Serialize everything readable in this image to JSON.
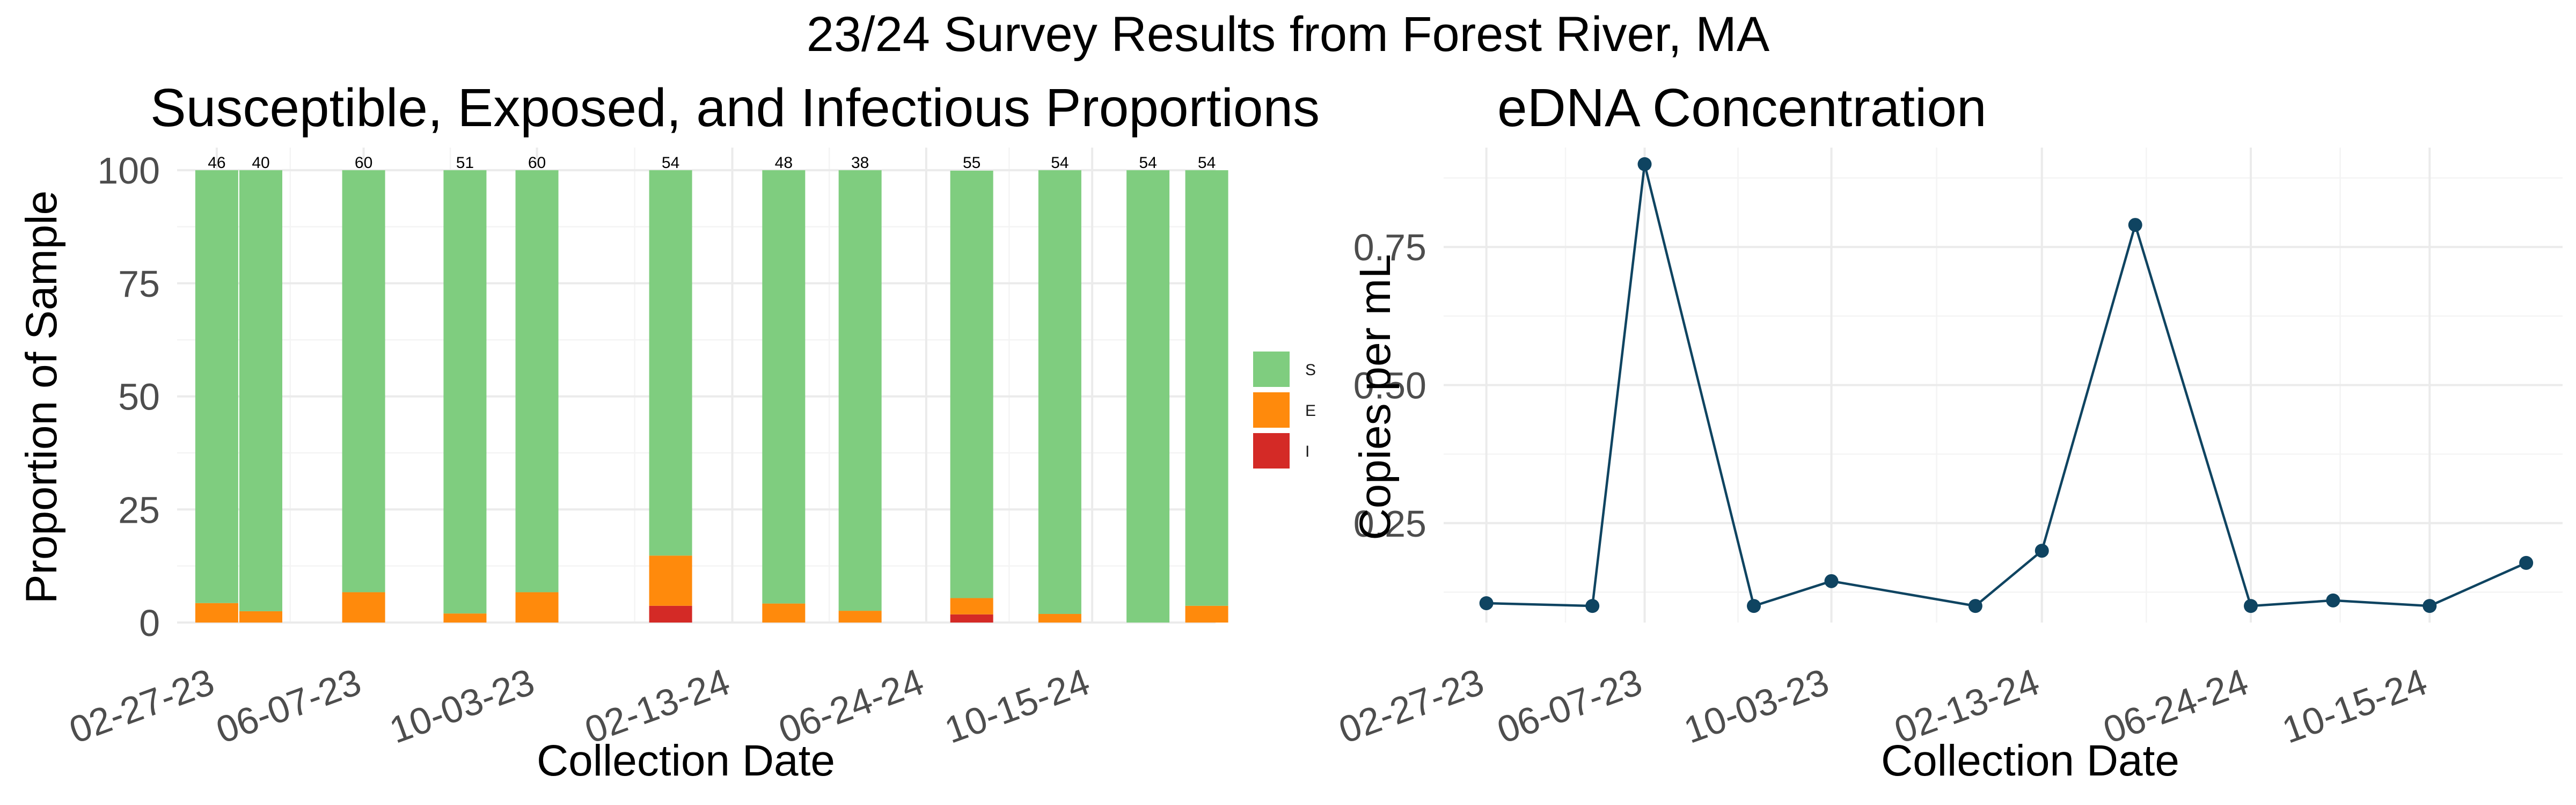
{
  "figure": {
    "title": "23/24 Survey Results from  Forest River, MA"
  },
  "chart_data": [
    {
      "type": "bar",
      "stacked": true,
      "title": "Susceptible, Exposed, and Infectious Proportions",
      "xlabel": "Collection Date",
      "ylabel": "Proportion of Sample",
      "ylim": [
        0,
        105
      ],
      "yticks": [
        0,
        25,
        50,
        75,
        100
      ],
      "x_tick_labels": [
        "02-27-23",
        "06-07-23",
        "10-03-23",
        "02-13-24",
        "06-24-24",
        "10-15-24"
      ],
      "x_tick_dates": [
        "2023-02-27",
        "2023-06-07",
        "2023-10-03",
        "2024-02-13",
        "2024-06-24",
        "2024-10-15"
      ],
      "x_range": [
        "2023-01-31",
        "2025-01-07"
      ],
      "grid": true,
      "legend_position": "right",
      "categories": [
        "2023-02-27",
        "2023-03-29",
        "2023-06-07",
        "2023-08-15",
        "2023-10-03",
        "2024-01-02",
        "2024-03-19",
        "2024-05-10",
        "2024-07-25",
        "2024-09-23",
        "2024-11-22",
        "2025-01-01"
      ],
      "sample_sizes": [
        "46",
        "40",
        "60",
        "51",
        "60",
        "54",
        "48",
        "38",
        "55",
        "54",
        "54",
        "54"
      ],
      "series": [
        {
          "name": "S",
          "color": "#7fcd7f",
          "values": [
            95.7,
            97.5,
            93.3,
            98.0,
            93.3,
            85.2,
            95.8,
            97.4,
            94.5,
            98.1,
            100.0,
            96.3
          ]
        },
        {
          "name": "E",
          "color": "#ff8a0c",
          "values": [
            4.3,
            2.5,
            6.7,
            2.0,
            6.7,
            11.1,
            4.2,
            2.6,
            3.6,
            1.9,
            0.0,
            3.7
          ]
        },
        {
          "name": "I",
          "color": "#d42a26",
          "values": [
            0.0,
            0.0,
            0.0,
            0.0,
            0.0,
            3.7,
            0.0,
            0.0,
            1.8,
            0.0,
            0.0,
            0.0
          ]
        }
      ]
    },
    {
      "type": "line",
      "title": "eDNA Concentration",
      "xlabel": "Collection Date",
      "ylabel": "Copies per mL",
      "ylim": [
        0.07,
        0.93
      ],
      "yticks": [
        0.25,
        0.5,
        0.75
      ],
      "ytick_labels": [
        "0.25",
        "0.50",
        "0.75"
      ],
      "x_tick_labels": [
        "02-27-23",
        "06-07-23",
        "10-03-23",
        "02-13-24",
        "06-24-24",
        "10-15-24"
      ],
      "x_tick_dates": [
        "2023-02-27",
        "2023-06-07",
        "2023-10-03",
        "2024-02-13",
        "2024-06-24",
        "2024-10-15"
      ],
      "x_range": [
        "2023-01-31",
        "2025-01-07"
      ],
      "grid": true,
      "color": "#0f4461",
      "x": [
        "2023-02-27",
        "2023-05-05",
        "2023-06-07",
        "2023-08-15",
        "2023-10-03",
        "2024-01-02",
        "2024-02-13",
        "2024-04-12",
        "2024-06-24",
        "2024-08-15",
        "2024-10-15",
        "2024-12-15"
      ],
      "y": [
        0.105,
        0.1,
        0.9,
        0.1,
        0.145,
        0.1,
        0.2,
        0.79,
        0.1,
        0.11,
        0.1,
        0.178
      ]
    }
  ]
}
